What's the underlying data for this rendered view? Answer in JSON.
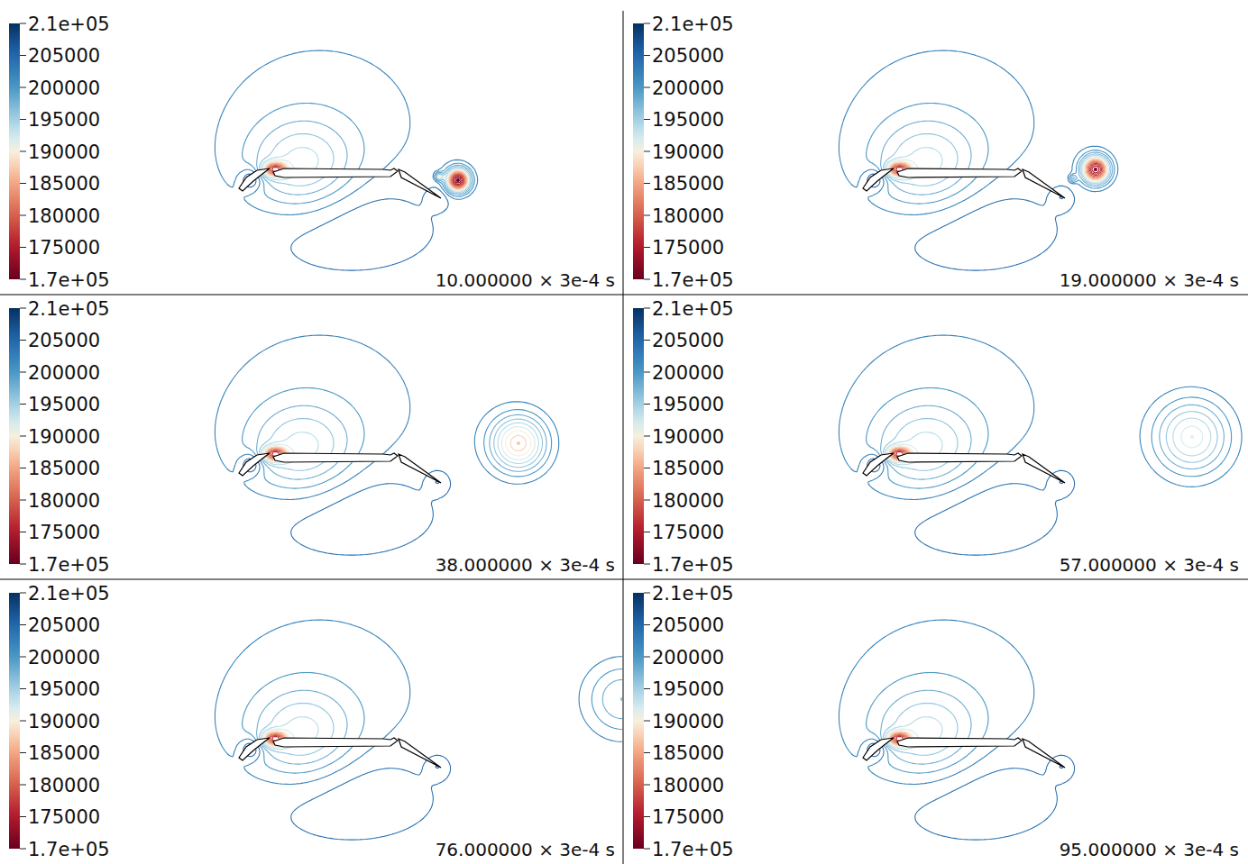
{
  "chart_data": [
    {
      "type": "contour",
      "title": "10.000000 × 3e-4 s",
      "levels": [
        170000,
        172000,
        174000,
        176000,
        178000,
        180000,
        182000,
        184000,
        186000,
        188000,
        190000,
        192000,
        194000,
        196000,
        198000,
        200000,
        202000,
        204000,
        206000,
        208000,
        210000
      ],
      "vortices": [
        {
          "x": 1.115,
          "y": -0.015,
          "p_min": 170000,
          "radius": 0.06
        },
        {
          "x": 1.01,
          "y": 0.005,
          "p_min": 190000,
          "radius": 0.02
        }
      ],
      "colorbar": {
        "range": [
          170000,
          210000
        ],
        "ticks": [
          {
            "value": 210000,
            "label": "2.1e+05"
          },
          205000,
          200000,
          195000,
          190000,
          185000,
          180000,
          175000,
          {
            "value": 170000,
            "label": "1.7e+05"
          }
        ]
      }
    },
    {
      "type": "contour",
      "title": "19.000000 × 3e-4 s",
      "levels": [
        170000,
        172000,
        174000,
        176000,
        178000,
        180000,
        182000,
        184000,
        186000,
        188000,
        190000,
        192000,
        194000,
        196000,
        198000,
        200000,
        202000,
        204000,
        206000,
        208000,
        210000
      ],
      "vortices": [
        {
          "x": 1.19,
          "y": 0.045,
          "p_min": 172000,
          "radius": 0.07
        },
        {
          "x": 1.065,
          "y": -0.005,
          "p_min": 195000,
          "radius": 0.02
        }
      ],
      "colorbar": {
        "range": [
          170000,
          210000
        ],
        "ticks": [
          {
            "value": 210000,
            "label": "2.1e+05"
          },
          205000,
          200000,
          195000,
          190000,
          185000,
          180000,
          175000,
          {
            "value": 170000,
            "label": "1.7e+05"
          }
        ]
      }
    },
    {
      "type": "contour",
      "title": "38.000000 × 3e-4 s",
      "levels": [
        170000,
        172000,
        174000,
        176000,
        178000,
        180000,
        182000,
        184000,
        186000,
        188000,
        190000,
        192000,
        194000,
        196000,
        198000,
        200000,
        202000,
        204000,
        206000,
        208000,
        210000
      ],
      "vortices": [
        {
          "x": 1.45,
          "y": 0.105,
          "p_min": 187000,
          "radius": 0.15
        }
      ],
      "colorbar": {
        "range": [
          170000,
          210000
        ],
        "ticks": [
          {
            "value": 210000,
            "label": "2.1e+05"
          },
          205000,
          200000,
          195000,
          190000,
          185000,
          180000,
          175000,
          {
            "value": 170000,
            "label": "1.7e+05"
          }
        ]
      }
    },
    {
      "type": "contour",
      "title": "57.000000 × 3e-4 s",
      "levels": [
        170000,
        172000,
        174000,
        176000,
        178000,
        180000,
        182000,
        184000,
        186000,
        188000,
        190000,
        192000,
        194000,
        196000,
        198000,
        200000,
        202000,
        204000,
        206000,
        208000,
        210000
      ],
      "vortices": [
        {
          "x": 1.725,
          "y": 0.14,
          "p_min": 191000,
          "radius": 0.2
        }
      ],
      "colorbar": {
        "range": [
          170000,
          210000
        ],
        "ticks": [
          {
            "value": 210000,
            "label": "2.1e+05"
          },
          205000,
          200000,
          195000,
          190000,
          185000,
          180000,
          175000,
          {
            "value": 170000,
            "label": "1.7e+05"
          }
        ]
      }
    },
    {
      "type": "contour",
      "title": "76.000000 × 3e-4 s",
      "levels": [
        170000,
        172000,
        174000,
        176000,
        178000,
        180000,
        182000,
        184000,
        186000,
        188000,
        190000,
        192000,
        194000,
        196000,
        198000,
        200000,
        202000,
        204000,
        206000,
        208000,
        210000
      ],
      "vortices": [
        {
          "x": 2.025,
          "y": 0.265,
          "p_min": 196000,
          "radius": 0.2
        }
      ],
      "colorbar": {
        "range": [
          170000,
          210000
        ],
        "ticks": [
          {
            "value": 210000,
            "label": "2.1e+05"
          },
          205000,
          200000,
          195000,
          190000,
          185000,
          180000,
          175000,
          {
            "value": 170000,
            "label": "1.7e+05"
          }
        ]
      }
    },
    {
      "type": "contour",
      "title": "95.000000 × 3e-4 s",
      "levels": [
        170000,
        172000,
        174000,
        176000,
        178000,
        180000,
        182000,
        184000,
        186000,
        188000,
        190000,
        192000,
        194000,
        196000,
        198000,
        200000,
        202000,
        204000,
        206000,
        208000,
        210000
      ],
      "vortices": [],
      "colorbar": {
        "range": [
          170000,
          210000
        ],
        "ticks": [
          {
            "value": 210000,
            "label": "2.1e+05"
          },
          205000,
          200000,
          195000,
          190000,
          185000,
          180000,
          175000,
          {
            "value": 170000,
            "label": "1.7e+05"
          }
        ]
      }
    }
  ]
}
